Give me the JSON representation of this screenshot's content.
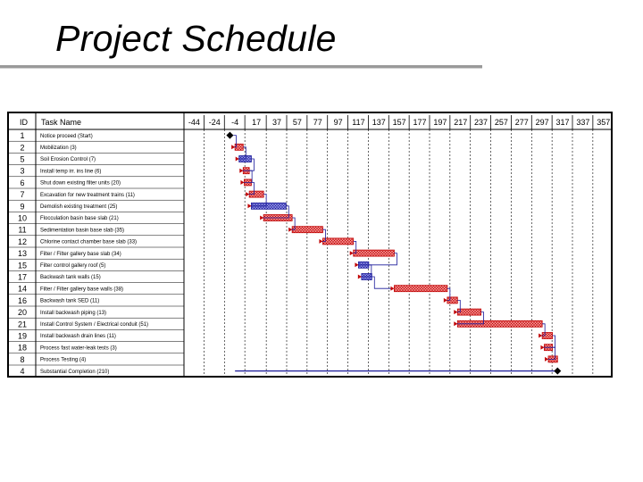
{
  "slide": {
    "title": "Project Schedule"
  },
  "colors": {
    "critical_fill": "#f08a8a",
    "critical_stroke": "#c00000",
    "normal_fill": "#8a8ae0",
    "normal_stroke": "#1a1a9a",
    "link": "#1a1a9a",
    "summary": "#1a1a9a",
    "milestone": "#000000",
    "grid": "#000000"
  },
  "chart_data": {
    "type": "gantt",
    "title": "",
    "columns": {
      "id": "ID",
      "task": "Task Name"
    },
    "x_ticks": [
      -44,
      -24,
      -4,
      17,
      37,
      57,
      77,
      97,
      117,
      137,
      157,
      177,
      197,
      217,
      237,
      257,
      277,
      297,
      317,
      337,
      357
    ],
    "x_range": [
      -54,
      366
    ],
    "tasks": [
      {
        "id": "1",
        "name": "Notice proceed (Start)",
        "start": -9,
        "end": -9,
        "kind": "milestone"
      },
      {
        "id": "2",
        "name": "Mobilization (3)",
        "start": -4,
        "end": 4,
        "kind": "critical"
      },
      {
        "id": "5",
        "name": "Soil Erosion Control (7)",
        "start": 0,
        "end": 12,
        "kind": "normal"
      },
      {
        "id": "3",
        "name": "Install temp irr. ins line (6)",
        "start": 4,
        "end": 10,
        "kind": "critical"
      },
      {
        "id": "6",
        "name": "Shut down existing filter units (20)",
        "start": 5,
        "end": 12,
        "kind": "critical"
      },
      {
        "id": "7",
        "name": "Excavation for new treatment trains (11)",
        "start": 10,
        "end": 24,
        "kind": "critical"
      },
      {
        "id": "9",
        "name": "Demolish existing treatment (25)",
        "start": 12,
        "end": 46,
        "kind": "normal"
      },
      {
        "id": "10",
        "name": "Flocculation basin base slab (21)",
        "start": 24,
        "end": 52,
        "kind": "critical"
      },
      {
        "id": "11",
        "name": "Sedimentation basin base slab (35)",
        "start": 52,
        "end": 82,
        "kind": "critical"
      },
      {
        "id": "12",
        "name": "Chlorine contact chamber base slab (33)",
        "start": 82,
        "end": 112,
        "kind": "critical"
      },
      {
        "id": "13",
        "name": "Filter / Filter gallery base slab (34)",
        "start": 112,
        "end": 152,
        "kind": "critical"
      },
      {
        "id": "15",
        "name": "Filter control gallery roof (5)",
        "start": 117,
        "end": 127,
        "kind": "normal"
      },
      {
        "id": "17",
        "name": "Backwash tank walls (15)",
        "start": 120,
        "end": 130,
        "kind": "normal"
      },
      {
        "id": "14",
        "name": "Filter / Filter gallery base walls (38)",
        "start": 152,
        "end": 204,
        "kind": "critical"
      },
      {
        "id": "16",
        "name": "Backwash tank SED (11)",
        "start": 204,
        "end": 214,
        "kind": "critical"
      },
      {
        "id": "20",
        "name": "Install backwash piping (13)",
        "start": 214,
        "end": 237,
        "kind": "critical"
      },
      {
        "id": "21",
        "name": "Install Control System / Electrical conduit (51)",
        "start": 214,
        "end": 297,
        "kind": "critical"
      },
      {
        "id": "19",
        "name": "Install backwash drain lines (11)",
        "start": 297,
        "end": 307,
        "kind": "critical"
      },
      {
        "id": "18",
        "name": "Process fast water-leak tests (3)",
        "start": 299,
        "end": 307,
        "kind": "critical"
      },
      {
        "id": "8",
        "name": "Process Testing (4)",
        "start": 303,
        "end": 312,
        "kind": "critical"
      },
      {
        "id": "4",
        "name": "Substantial Completion (210)",
        "start": -4,
        "end": 312,
        "kind": "summary"
      }
    ]
  }
}
